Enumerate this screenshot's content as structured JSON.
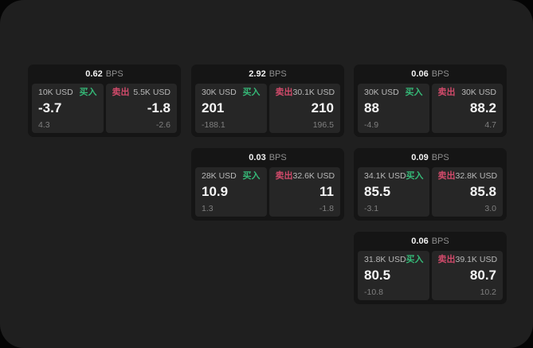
{
  "unit_label": "BPS",
  "colors": {
    "buy_green": "#35b877",
    "sell_red": "#d04a6a",
    "surface": "#1f1f1f",
    "card_bg": "#151515",
    "tile_bg": "#262626"
  },
  "cards": [
    {
      "bps": "0.62",
      "unit": "BPS",
      "buy": {
        "amount": "10K USD",
        "label": "买入",
        "value": "-3.7",
        "change": "4.3"
      },
      "sell": {
        "label": "卖出",
        "amount": "5.5K USD",
        "value": "-1.8",
        "change": "-2.6"
      }
    },
    {
      "bps": "2.92",
      "unit": "BPS",
      "buy": {
        "amount": "30K USD",
        "label": "买入",
        "value": "201",
        "change": "-188.1"
      },
      "sell": {
        "label": "卖出",
        "amount": "30.1K USD",
        "value": "210",
        "change": "196.5"
      }
    },
    {
      "bps": "0.06",
      "unit": "BPS",
      "buy": {
        "amount": "30K USD",
        "label": "买入",
        "value": "88",
        "change": "-4.9"
      },
      "sell": {
        "label": "卖出",
        "amount": "30K USD",
        "value": "88.2",
        "change": "4.7"
      }
    },
    {
      "bps": "0.03",
      "unit": "BPS",
      "buy": {
        "amount": "28K USD",
        "label": "买入",
        "value": "10.9",
        "change": "1.3"
      },
      "sell": {
        "label": "卖出",
        "amount": "32.6K USD",
        "value": "11",
        "change": "-1.8"
      }
    },
    {
      "bps": "0.09",
      "unit": "BPS",
      "buy": {
        "amount": "34.1K USD",
        "label": "买入",
        "value": "85.5",
        "change": "-3.1"
      },
      "sell": {
        "label": "卖出",
        "amount": "32.8K USD",
        "value": "85.8",
        "change": "3.0"
      }
    },
    {
      "bps": "0.06",
      "unit": "BPS",
      "buy": {
        "amount": "31.8K USD",
        "label": "买入",
        "value": "80.5",
        "change": "-10.8"
      },
      "sell": {
        "label": "卖出",
        "amount": "39.1K USD",
        "value": "80.7",
        "change": "10.2"
      }
    }
  ]
}
